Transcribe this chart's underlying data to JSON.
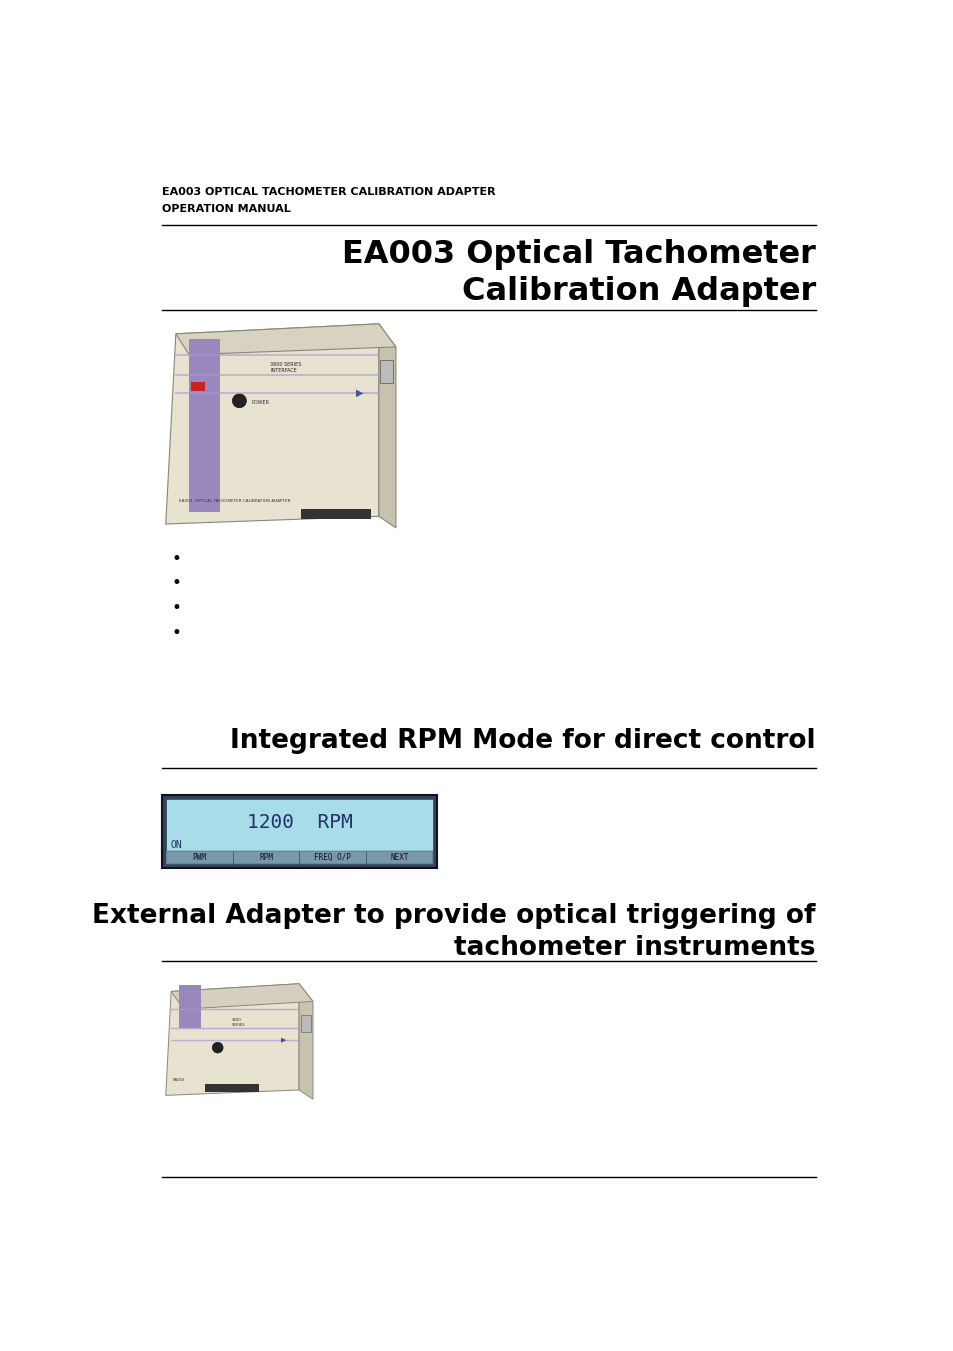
{
  "header_line1": "EA003 OPTICAL TACHOMETER CALIBRATION ADAPTER",
  "header_line2": "OPERATION MANUAL",
  "main_title": "EA003 Optical Tachometer\nCalibration Adapter",
  "section1_title": "Integrated RPM Mode for direct control",
  "section2_title": "External Adapter to provide optical triggering of\ntachometer instruments",
  "bullet_points": [
    "",
    "",
    "",
    ""
  ],
  "lcd_text": "1200  RPM",
  "lcd_subtext": "ON",
  "lcd_menu": [
    "PWM",
    "RPM",
    "FREQ O/P",
    "NEXT"
  ],
  "lcd_bg_color": "#a8dce8",
  "lcd_border_color": "#222244",
  "lcd_text_color": "#223366",
  "lcd_menu_bg": "#88aabb",
  "bg_color": "#ffffff",
  "text_color": "#000000",
  "header_color": "#000000",
  "line_color": "#000000",
  "device_body_color": "#e8e2d0",
  "device_shadow_color": "#c8c2b0",
  "device_purple": "#9988bb",
  "device_stripe": "#aa99cc",
  "title_fontsize": 22,
  "header_fontsize": 8,
  "section_fontsize": 18,
  "body_fontsize": 11
}
